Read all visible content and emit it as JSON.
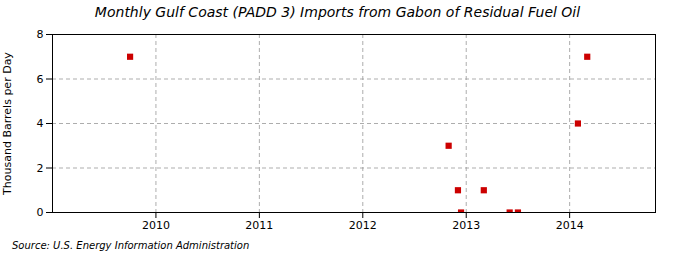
{
  "chart_data": {
    "type": "scatter",
    "title": "Monthly Gulf Coast (PADD 3) Imports from Gabon of Residual Fuel Oil",
    "ylabel": "Thousand Barrels per Day",
    "source": "Source: U.S. Energy Information Administration",
    "x": [
      2009.75,
      2012.83,
      2012.92,
      2012.95,
      2013.17,
      2013.42,
      2013.5,
      2014.08,
      2014.17
    ],
    "values": [
      7,
      3,
      1,
      0,
      1,
      0,
      0,
      4,
      7
    ],
    "color": "#cc0000",
    "marker": "square",
    "xlim": [
      2009.0,
      2014.83
    ],
    "ylim": [
      0,
      8
    ],
    "xticks": [
      2010,
      2011,
      2012,
      2013,
      2014
    ],
    "yticks": [
      0,
      2,
      4,
      6,
      8
    ],
    "grid": true
  }
}
